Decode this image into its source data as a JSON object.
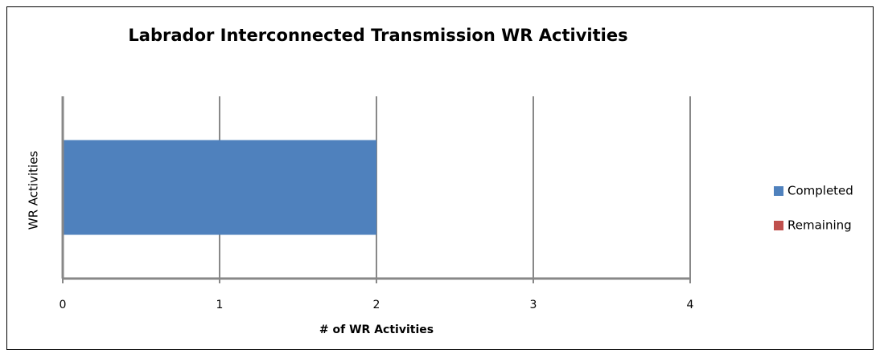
{
  "chart_data": {
    "type": "bar",
    "orientation": "horizontal",
    "stacked": true,
    "title": "Labrador Interconnected Transmission WR Activities",
    "x_label": "# of WR Activities",
    "y_label": "WR Activities",
    "categories": [
      null
    ],
    "series": [
      {
        "name": "Completed",
        "color": "#4f81bd",
        "values": [
          2
        ]
      },
      {
        "name": "Remaining",
        "color": "#c0504d",
        "values": [
          0
        ]
      }
    ],
    "xlim": [
      0,
      4
    ],
    "xticks": [
      0,
      1,
      2,
      3,
      4
    ],
    "grid": true,
    "legend": "right"
  }
}
